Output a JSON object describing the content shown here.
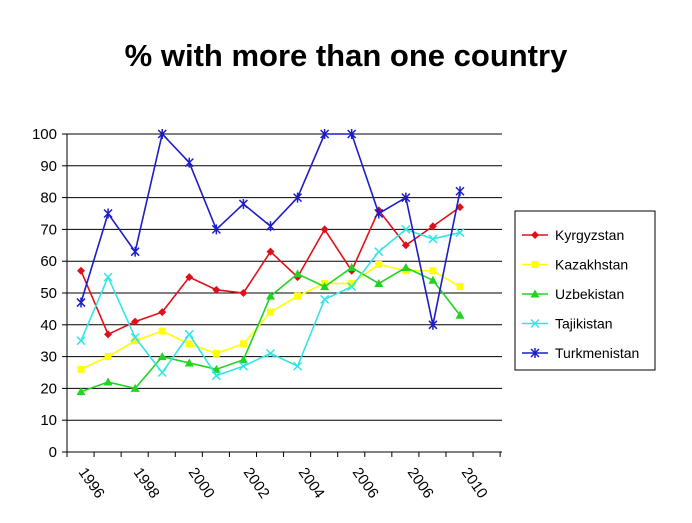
{
  "chart_data": {
    "type": "line",
    "title": "% with more than one country",
    "xlabel": "",
    "ylabel": "",
    "ylim": [
      0,
      100
    ],
    "yticks": [
      0,
      10,
      20,
      30,
      40,
      50,
      60,
      70,
      80,
      90,
      100
    ],
    "xtick_labels": [
      "1996",
      "1998",
      "2000",
      "2002",
      "2004",
      "2006",
      "2006",
      "2010"
    ],
    "grid": "horizontal",
    "legend_position": "right",
    "series": [
      {
        "name": "Kyrgyzstan",
        "color": "#e0101a",
        "marker": "diamond",
        "values": [
          57,
          37,
          41,
          44,
          55,
          51,
          50,
          63,
          55,
          70,
          57,
          76,
          65,
          71,
          77
        ]
      },
      {
        "name": "Kazakhstan",
        "color": "#ffff00",
        "marker": "square",
        "values": [
          26,
          30,
          35,
          38,
          34,
          31,
          34,
          44,
          49,
          53,
          53,
          59,
          57,
          57,
          52
        ]
      },
      {
        "name": "Uzbekistan",
        "color": "#22d322",
        "marker": "triangle",
        "values": [
          19,
          22,
          20,
          30,
          28,
          26,
          29,
          49,
          56,
          52,
          58,
          53,
          58,
          54,
          43
        ]
      },
      {
        "name": "Tajikistan",
        "color": "#33e6e6",
        "marker": "x",
        "values": [
          35,
          55,
          36,
          25,
          37,
          24,
          27,
          31,
          27,
          48,
          52,
          63,
          70,
          67,
          69
        ]
      },
      {
        "name": "Turkmenistan",
        "color": "#1c1cc9",
        "marker": "asterisk",
        "values": [
          47,
          75,
          63,
          100,
          91,
          70,
          78,
          71,
          80,
          100,
          100,
          75,
          80,
          40,
          82
        ]
      }
    ]
  }
}
